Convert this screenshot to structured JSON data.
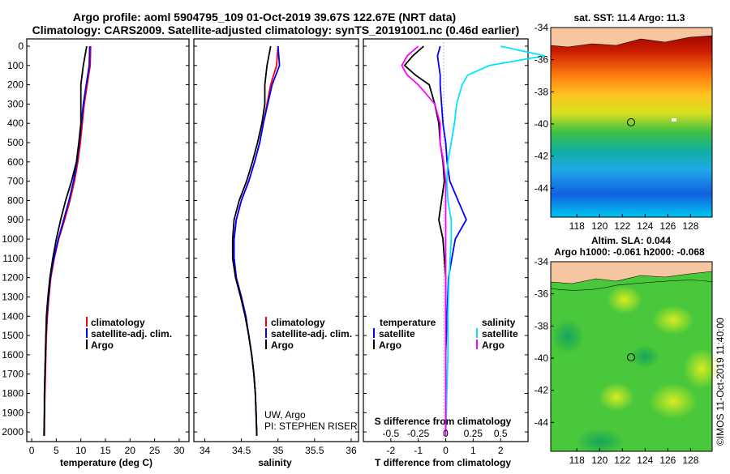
{
  "header": {
    "line1": "Argo profile: aoml 5904795_109 01-Oct-2019 39.67S 122.67E (NRT data)",
    "line2": "Climatology: CARS2009. Satellite-adjusted climatology: synTS_20191001.nc (0.46d earlier)"
  },
  "depth_ticks": [
    "0",
    "100",
    "200",
    "300",
    "400",
    "500",
    "600",
    "700",
    "800",
    "900",
    "1000",
    "1100",
    "1200",
    "1300",
    "1400",
    "1500",
    "1600",
    "1700",
    "1800",
    "1900",
    "2000"
  ],
  "colors": {
    "climatology": "#ff0000",
    "satellite": "#0000ff",
    "argo": "#000000",
    "cyan": "#00e5ff",
    "magenta": "#ff00ff"
  },
  "chart_data": [
    {
      "type": "line",
      "id": "temperature",
      "xlabel": "temperature (deg C)",
      "xlim": [
        -1,
        32
      ],
      "ylim": [
        2050,
        0
      ],
      "xticks": [
        "0",
        "5",
        "10",
        "15",
        "20",
        "25",
        "30"
      ],
      "legend": [
        "climatology",
        "satellite-adj. clim.",
        "Argo"
      ],
      "depth": [
        0,
        100,
        200,
        300,
        400,
        500,
        600,
        700,
        800,
        900,
        1000,
        1100,
        1200,
        1300,
        1400,
        1500,
        1600,
        1700,
        1800,
        1900,
        2020
      ],
      "series": [
        {
          "name": "climatology",
          "values": [
            12.0,
            11.9,
            11.3,
            10.7,
            10.3,
            9.9,
            9.4,
            8.7,
            7.8,
            6.7,
            5.5,
            4.6,
            3.9,
            3.5,
            3.2,
            3.0,
            2.9,
            2.8,
            2.7,
            2.6,
            2.6
          ]
        },
        {
          "name": "satellite-adj. clim.",
          "values": [
            11.8,
            11.7,
            11.1,
            10.5,
            10.1,
            9.7,
            9.2,
            8.5,
            7.6,
            6.5,
            5.4,
            4.5,
            3.8,
            3.4,
            3.1,
            2.9,
            2.8,
            2.7,
            2.6,
            2.6,
            2.5
          ]
        },
        {
          "name": "Argo",
          "values": [
            11.2,
            10.5,
            10.0,
            10.0,
            10.0,
            9.6,
            9.1,
            8.1,
            6.9,
            5.9,
            5.0,
            4.3,
            3.7,
            3.3,
            3.0,
            2.9,
            2.8,
            2.7,
            2.6,
            2.6,
            2.5
          ]
        }
      ]
    },
    {
      "type": "line",
      "id": "salinity",
      "xlabel": "salinity",
      "xlim": [
        33.85,
        36.1
      ],
      "ylim": [
        2050,
        0
      ],
      "xticks": [
        "34",
        "34.5",
        "35",
        "35.5",
        "36"
      ],
      "legend": [
        "climatology",
        "satellite-adj. clim.",
        "Argo"
      ],
      "credit1": "UW, Argo",
      "credit2": "PI: STEPHEN RISER",
      "depth": [
        0,
        100,
        200,
        300,
        400,
        500,
        600,
        700,
        800,
        900,
        1000,
        1100,
        1200,
        1300,
        1400,
        1500,
        1600,
        1700,
        1800,
        1900,
        2020
      ],
      "series": [
        {
          "name": "climatology",
          "values": [
            35.0,
            34.98,
            34.9,
            34.85,
            34.8,
            34.75,
            34.68,
            34.6,
            34.5,
            34.43,
            34.4,
            34.4,
            34.43,
            34.5,
            34.56,
            34.6,
            34.64,
            34.67,
            34.69,
            34.7,
            34.71
          ]
        },
        {
          "name": "satellite-adj. clim.",
          "values": [
            35.0,
            35.02,
            34.92,
            34.86,
            34.8,
            34.75,
            34.68,
            34.6,
            34.5,
            34.43,
            34.4,
            34.4,
            34.43,
            34.5,
            34.56,
            34.6,
            34.64,
            34.67,
            34.69,
            34.7,
            34.71
          ]
        },
        {
          "name": "Argo",
          "values": [
            34.9,
            34.85,
            34.82,
            34.82,
            34.78,
            34.72,
            34.65,
            34.57,
            34.47,
            34.4,
            34.38,
            34.38,
            34.42,
            34.49,
            34.55,
            34.6,
            34.64,
            34.67,
            34.69,
            34.7,
            34.71
          ]
        }
      ]
    },
    {
      "type": "line",
      "id": "differences",
      "xlabel": "T difference from climatology",
      "xlabel2": "S difference from climatology",
      "xlim": [
        -3,
        3
      ],
      "ylim": [
        2050,
        0
      ],
      "xticks": [
        "-2",
        "-1",
        "0",
        "1",
        "2"
      ],
      "xticks2": [
        "-0.5",
        "-0.25",
        "0",
        "0.25",
        "0.5"
      ],
      "legend_left_title": "temperature",
      "legend_right_title": "salinity",
      "legend_left": [
        "satellite",
        "Argo"
      ],
      "legend_right": [
        "satellite",
        "Argo"
      ],
      "depth": [
        0,
        50,
        100,
        150,
        200,
        300,
        400,
        500,
        600,
        700,
        800,
        900,
        1000,
        1200,
        1400,
        1600,
        1800,
        2020
      ],
      "series": [
        {
          "name": "T satellite",
          "values": [
            -0.2,
            -0.3,
            -0.25,
            -0.2,
            -0.2,
            -0.15,
            -0.1,
            0.0,
            0.05,
            0.15,
            0.45,
            0.75,
            0.35,
            0.1,
            0.05,
            0.0,
            0.0,
            0.0
          ]
        },
        {
          "name": "T Argo",
          "values": [
            -0.8,
            -1.2,
            -1.5,
            -1.1,
            -0.6,
            -0.4,
            -0.25,
            -0.2,
            -0.1,
            -0.05,
            -0.15,
            -0.25,
            -0.1,
            0.0,
            0.0,
            0.0,
            0.0,
            0.0
          ]
        },
        {
          "name": "S satellite",
          "values": [
            0.5,
            0.9,
            0.4,
            0.2,
            0.15,
            0.1,
            0.08,
            0.05,
            0.02,
            0.01,
            0.02,
            0.05,
            0.05,
            0.03,
            0.02,
            0.02,
            0.01,
            0.0
          ]
        },
        {
          "name": "S Argo",
          "values": [
            -0.25,
            -0.35,
            -0.4,
            -0.35,
            -0.25,
            -0.1,
            -0.05,
            -0.05,
            -0.02,
            0.0,
            0.0,
            0.0,
            0.0,
            0.0,
            0.0,
            0.0,
            0.0,
            0.0
          ]
        }
      ]
    }
  ],
  "maps": {
    "sst_title": "sat. SST: 11.4 Argo: 11.3",
    "sla_title1": "Altim. SLA: 0.044",
    "sla_title2": "Argo h1000: -0.061 h2000: -0.068",
    "lat_ticks": [
      "-34",
      "-36",
      "-38",
      "-40",
      "-42",
      "-44"
    ],
    "lon_ticks": [
      "118",
      "120",
      "122",
      "124",
      "126",
      "128"
    ],
    "float_position": {
      "lat": -39.67,
      "lon": 122.67
    },
    "stamp": "©IMOS 11-Oct-2019 11:40:00"
  }
}
